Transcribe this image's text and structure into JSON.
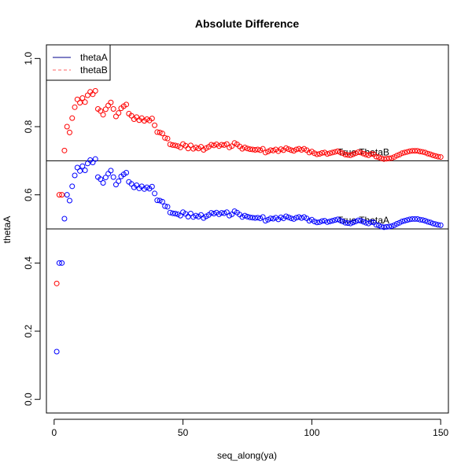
{
  "chart_data": {
    "type": "scatter",
    "title": "Absolute Difference",
    "xlabel": "seq_along(ya)",
    "ylabel": "thetaA",
    "xlim": [
      -3,
      153
    ],
    "ylim": [
      -0.04,
      1.04
    ],
    "x_ticks": [
      0,
      50,
      100,
      150
    ],
    "y_ticks": [
      0.0,
      0.2,
      0.4,
      0.6,
      0.8,
      1.0
    ],
    "x_tick_labels": [
      "0",
      "50",
      "100",
      "150"
    ],
    "y_tick_labels": [
      "0.0",
      "0.2",
      "0.4",
      "0.6",
      "0.8",
      "1.0"
    ],
    "grid": false,
    "legend": {
      "placement": "top-left",
      "entries": [
        {
          "name": "thetaA",
          "color": "#00008b",
          "style": "solid"
        },
        {
          "name": "thetaB",
          "color": "#ff6060",
          "style": "dashed"
        }
      ]
    },
    "hlines": [
      {
        "y": 0.7,
        "label": "True ThetaB",
        "label_x": 120
      },
      {
        "y": 0.5,
        "label": "True ThetaA",
        "label_x": 120
      }
    ],
    "series": [
      {
        "name": "thetaA",
        "color": "#0000ff",
        "x": [
          1,
          2,
          3,
          4,
          5,
          6,
          7,
          8,
          9,
          10,
          11,
          12,
          13,
          14,
          15,
          16,
          17,
          18,
          19,
          20,
          21,
          22,
          23,
          24,
          25,
          26,
          27,
          28,
          29,
          30,
          31,
          32,
          33,
          34,
          35,
          36,
          37,
          38,
          39,
          40,
          41,
          42,
          43,
          44,
          45,
          46,
          47,
          48,
          49,
          50,
          51,
          52,
          53,
          54,
          55,
          56,
          57,
          58,
          59,
          60,
          61,
          62,
          63,
          64,
          65,
          66,
          67,
          68,
          69,
          70,
          71,
          72,
          73,
          74,
          75,
          76,
          77,
          78,
          79,
          80,
          81,
          82,
          83,
          84,
          85,
          86,
          87,
          88,
          89,
          90,
          91,
          92,
          93,
          94,
          95,
          96,
          97,
          98,
          99,
          100,
          101,
          102,
          103,
          104,
          105,
          106,
          107,
          108,
          109,
          110,
          111,
          112,
          113,
          114,
          115,
          116,
          117,
          118,
          119,
          120,
          121,
          122,
          123,
          124,
          125,
          126,
          127,
          128,
          129,
          130,
          131,
          132,
          133,
          134,
          135,
          136,
          137,
          138,
          139,
          140,
          141,
          142,
          143,
          144,
          145,
          146,
          147,
          148,
          149,
          150
        ],
        "y": [
          0.14,
          0.4,
          0.4,
          0.53,
          0.6,
          0.583,
          0.625,
          0.657,
          0.68,
          0.67,
          0.684,
          0.672,
          0.692,
          0.702,
          0.695,
          0.705,
          0.652,
          0.646,
          0.635,
          0.651,
          0.662,
          0.671,
          0.652,
          0.63,
          0.64,
          0.654,
          0.66,
          0.665,
          0.638,
          0.632,
          0.622,
          0.628,
          0.619,
          0.625,
          0.617,
          0.622,
          0.618,
          0.624,
          0.604,
          0.584,
          0.583,
          0.58,
          0.567,
          0.565,
          0.548,
          0.546,
          0.545,
          0.543,
          0.539,
          0.549,
          0.544,
          0.536,
          0.545,
          0.535,
          0.539,
          0.536,
          0.541,
          0.532,
          0.537,
          0.541,
          0.547,
          0.545,
          0.548,
          0.543,
          0.547,
          0.546,
          0.549,
          0.539,
          0.543,
          0.552,
          0.548,
          0.542,
          0.535,
          0.539,
          0.536,
          0.534,
          0.533,
          0.532,
          0.533,
          0.531,
          0.535,
          0.524,
          0.527,
          0.531,
          0.53,
          0.533,
          0.528,
          0.534,
          0.531,
          0.537,
          0.534,
          0.531,
          0.529,
          0.533,
          0.535,
          0.532,
          0.535,
          0.531,
          0.524,
          0.527,
          0.522,
          0.519,
          0.52,
          0.523,
          0.524,
          0.52,
          0.522,
          0.524,
          0.526,
          0.528,
          0.525,
          0.522,
          0.518,
          0.517,
          0.516,
          0.519,
          0.522,
          0.525,
          0.524,
          0.521,
          0.518,
          0.516,
          0.52,
          0.519,
          0.512,
          0.51,
          0.507,
          0.505,
          0.506,
          0.507,
          0.508,
          0.511,
          0.515,
          0.518,
          0.522,
          0.524,
          0.526,
          0.528,
          0.529,
          0.529,
          0.529,
          0.527,
          0.526,
          0.524,
          0.521,
          0.519,
          0.516,
          0.514,
          0.512,
          0.511
        ]
      },
      {
        "name": "thetaB",
        "color": "#ff0000",
        "x": [
          1,
          2,
          3,
          4,
          5,
          6,
          7,
          8,
          9,
          10,
          11,
          12,
          13,
          14,
          15,
          16,
          17,
          18,
          19,
          20,
          21,
          22,
          23,
          24,
          25,
          26,
          27,
          28,
          29,
          30,
          31,
          32,
          33,
          34,
          35,
          36,
          37,
          38,
          39,
          40,
          41,
          42,
          43,
          44,
          45,
          46,
          47,
          48,
          49,
          50,
          51,
          52,
          53,
          54,
          55,
          56,
          57,
          58,
          59,
          60,
          61,
          62,
          63,
          64,
          65,
          66,
          67,
          68,
          69,
          70,
          71,
          72,
          73,
          74,
          75,
          76,
          77,
          78,
          79,
          80,
          81,
          82,
          83,
          84,
          85,
          86,
          87,
          88,
          89,
          90,
          91,
          92,
          93,
          94,
          95,
          96,
          97,
          98,
          99,
          100,
          101,
          102,
          103,
          104,
          105,
          106,
          107,
          108,
          109,
          110,
          111,
          112,
          113,
          114,
          115,
          116,
          117,
          118,
          119,
          120,
          121,
          122,
          123,
          124,
          125,
          126,
          127,
          128,
          129,
          130,
          131,
          132,
          133,
          134,
          135,
          136,
          137,
          138,
          139,
          140,
          141,
          142,
          143,
          144,
          145,
          146,
          147,
          148,
          149,
          150
        ],
        "y": [
          0.34,
          0.6,
          0.6,
          0.73,
          0.8,
          0.783,
          0.825,
          0.857,
          0.88,
          0.87,
          0.884,
          0.872,
          0.892,
          0.902,
          0.895,
          0.905,
          0.852,
          0.846,
          0.835,
          0.851,
          0.862,
          0.871,
          0.852,
          0.83,
          0.84,
          0.854,
          0.86,
          0.865,
          0.838,
          0.832,
          0.822,
          0.828,
          0.819,
          0.825,
          0.817,
          0.822,
          0.818,
          0.824,
          0.804,
          0.784,
          0.783,
          0.78,
          0.767,
          0.765,
          0.748,
          0.746,
          0.745,
          0.743,
          0.739,
          0.749,
          0.744,
          0.736,
          0.745,
          0.735,
          0.739,
          0.736,
          0.741,
          0.732,
          0.737,
          0.741,
          0.747,
          0.745,
          0.748,
          0.743,
          0.747,
          0.746,
          0.749,
          0.739,
          0.743,
          0.752,
          0.748,
          0.742,
          0.735,
          0.739,
          0.736,
          0.734,
          0.733,
          0.732,
          0.733,
          0.731,
          0.735,
          0.724,
          0.727,
          0.731,
          0.73,
          0.733,
          0.728,
          0.734,
          0.731,
          0.737,
          0.734,
          0.731,
          0.729,
          0.733,
          0.735,
          0.732,
          0.735,
          0.731,
          0.724,
          0.727,
          0.722,
          0.719,
          0.72,
          0.723,
          0.724,
          0.72,
          0.722,
          0.724,
          0.726,
          0.728,
          0.725,
          0.722,
          0.718,
          0.717,
          0.716,
          0.719,
          0.722,
          0.725,
          0.724,
          0.721,
          0.718,
          0.716,
          0.72,
          0.719,
          0.712,
          0.71,
          0.707,
          0.705,
          0.706,
          0.707,
          0.708,
          0.711,
          0.715,
          0.718,
          0.722,
          0.724,
          0.726,
          0.728,
          0.729,
          0.729,
          0.729,
          0.727,
          0.726,
          0.724,
          0.721,
          0.719,
          0.716,
          0.714,
          0.712,
          0.711
        ]
      }
    ]
  }
}
